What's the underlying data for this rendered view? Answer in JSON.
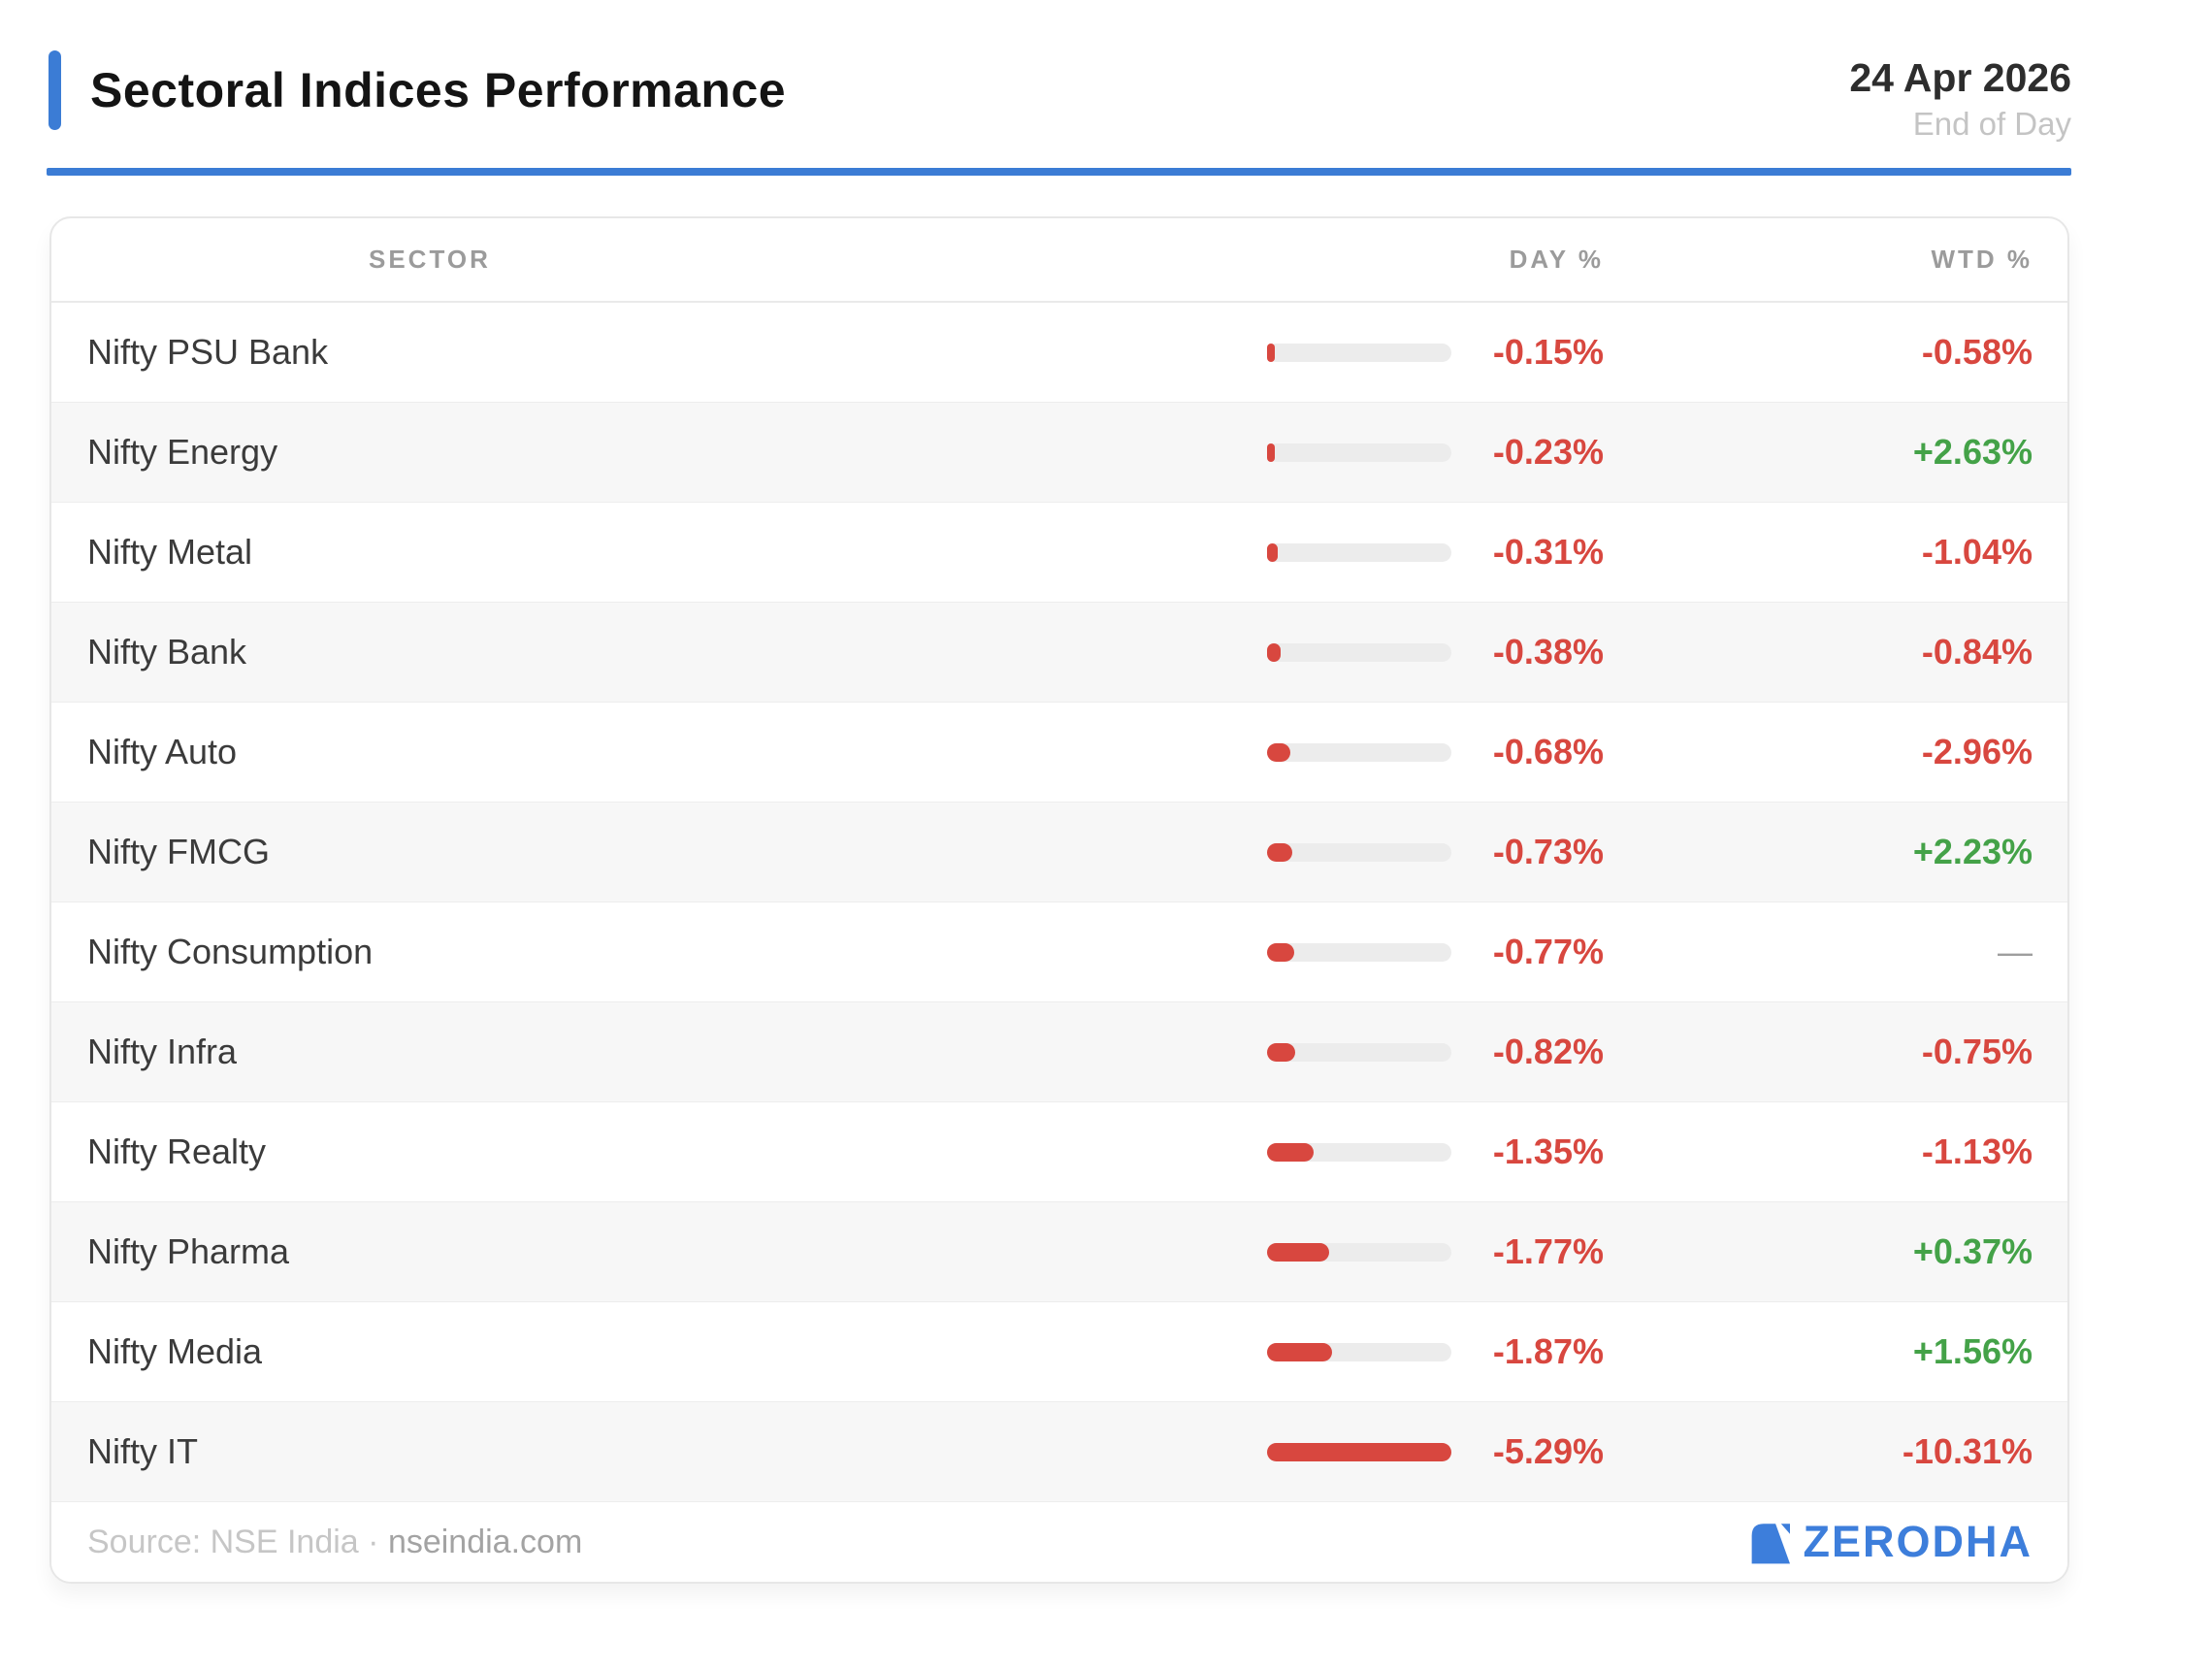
{
  "header": {
    "title": "Sectoral Indices Performance",
    "date": "24 Apr 2026",
    "subtitle": "End of Day"
  },
  "table": {
    "columns": {
      "sector": "SECTOR",
      "day": "DAY %",
      "wtd": "WTD %"
    },
    "day_bar_max": 5.29,
    "rows": [
      {
        "sector": "Nifty PSU Bank",
        "day": "-0.15%",
        "day_value": -0.15,
        "wtd": "-0.58%",
        "wtd_dir": "down"
      },
      {
        "sector": "Nifty Energy",
        "day": "-0.23%",
        "day_value": -0.23,
        "wtd": "+2.63%",
        "wtd_dir": "up"
      },
      {
        "sector": "Nifty Metal",
        "day": "-0.31%",
        "day_value": -0.31,
        "wtd": "-1.04%",
        "wtd_dir": "down"
      },
      {
        "sector": "Nifty Bank",
        "day": "-0.38%",
        "day_value": -0.38,
        "wtd": "-0.84%",
        "wtd_dir": "down"
      },
      {
        "sector": "Nifty Auto",
        "day": "-0.68%",
        "day_value": -0.68,
        "wtd": "-2.96%",
        "wtd_dir": "down"
      },
      {
        "sector": "Nifty FMCG",
        "day": "-0.73%",
        "day_value": -0.73,
        "wtd": "+2.23%",
        "wtd_dir": "up"
      },
      {
        "sector": "Nifty Consumption",
        "day": "-0.77%",
        "day_value": -0.77,
        "wtd": "—",
        "wtd_dir": "neutral"
      },
      {
        "sector": "Nifty Infra",
        "day": "-0.82%",
        "day_value": -0.82,
        "wtd": "-0.75%",
        "wtd_dir": "down"
      },
      {
        "sector": "Nifty Realty",
        "day": "-1.35%",
        "day_value": -1.35,
        "wtd": "-1.13%",
        "wtd_dir": "down"
      },
      {
        "sector": "Nifty Pharma",
        "day": "-1.77%",
        "day_value": -1.77,
        "wtd": "+0.37%",
        "wtd_dir": "up"
      },
      {
        "sector": "Nifty Media",
        "day": "-1.87%",
        "day_value": -1.87,
        "wtd": "+1.56%",
        "wtd_dir": "up"
      },
      {
        "sector": "Nifty IT",
        "day": "-5.29%",
        "day_value": -5.29,
        "wtd": "-10.31%",
        "wtd_dir": "down"
      }
    ]
  },
  "footer": {
    "source_prefix": "Source: NSE India ·",
    "source_link": "nseindia.com",
    "brand": "ZERODHA"
  },
  "colors": {
    "accent": "#3b7cd5",
    "red": "#d8473f",
    "green": "#44a248",
    "neutral": "#9e9e9e",
    "brand_blue": "#3d7edb"
  },
  "chart_data": {
    "type": "bar",
    "title": "Sectoral Indices Performance",
    "date": "24 Apr 2026",
    "subtitle": "End of Day",
    "categories": [
      "Nifty PSU Bank",
      "Nifty Energy",
      "Nifty Metal",
      "Nifty Bank",
      "Nifty Auto",
      "Nifty FMCG",
      "Nifty Consumption",
      "Nifty Infra",
      "Nifty Realty",
      "Nifty Pharma",
      "Nifty Media",
      "Nifty IT"
    ],
    "series": [
      {
        "name": "DAY %",
        "values": [
          -0.15,
          -0.23,
          -0.31,
          -0.38,
          -0.68,
          -0.73,
          -0.77,
          -0.82,
          -1.35,
          -1.77,
          -1.87,
          -5.29
        ]
      },
      {
        "name": "WTD %",
        "values": [
          -0.58,
          2.63,
          -1.04,
          -0.84,
          -2.96,
          2.23,
          null,
          -0.75,
          -1.13,
          0.37,
          1.56,
          -10.31
        ]
      }
    ],
    "layout": "horizontal magnitude bars scaled to max |DAY %| = 5.29, red = decline, green = gain",
    "source": "NSE India · nseindia.com"
  }
}
